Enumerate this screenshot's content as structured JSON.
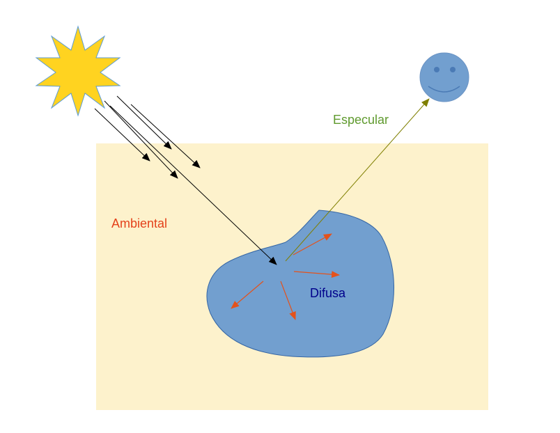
{
  "labels": {
    "ambient": "Ambiental",
    "specular": "Especular",
    "diffuse": "Difusa"
  },
  "colors": {
    "background_panel": "#fdf2cc",
    "blob_fill": "#729fcf",
    "blob_stroke": "#3465a4",
    "sun_fill": "#ffd320",
    "sun_stroke": "#5b9bd5",
    "face_fill": "#729fcf",
    "ray_color": "#000000",
    "diffuse_arrow_color": "#e4521b",
    "specular_arrow_color": "#7f7f00",
    "ambient_text": "#e4421b",
    "specular_text": "#5f9a2e",
    "diffuse_text": "#00008b"
  },
  "icons": {
    "light_source": "sun-icon",
    "viewer": "smiley-face-icon"
  }
}
